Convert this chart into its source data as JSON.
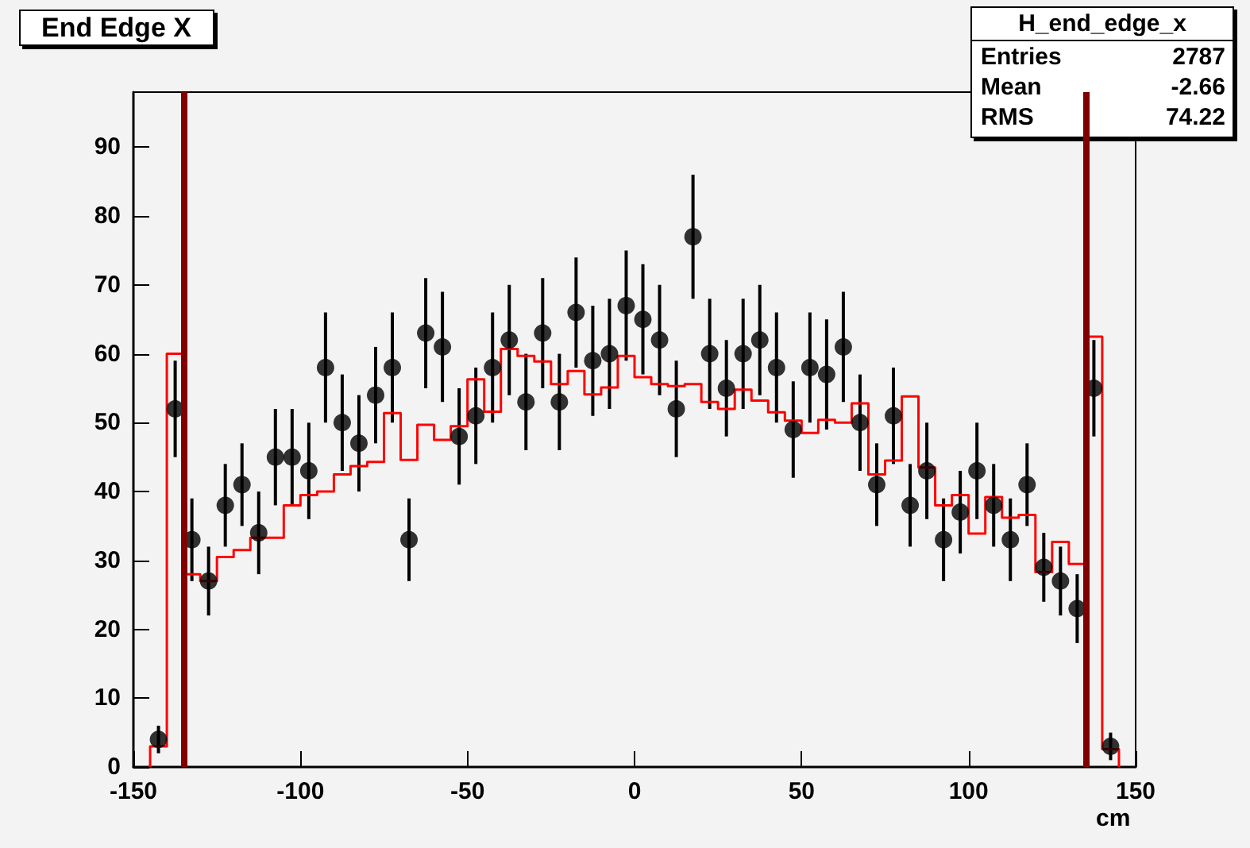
{
  "chart_data": {
    "type": "scatter",
    "title": "End Edge X",
    "xlabel": "cm",
    "annotations": [
      "H_end_edge_x",
      "Entries 2787",
      "Mean -2.66",
      "RMS 74.22"
    ],
    "x": [
      -142.5,
      -137.5,
      -132.5,
      -127.5,
      -122.5,
      -117.5,
      -112.5,
      -107.5,
      -102.5,
      -97.5,
      -92.5,
      -87.5,
      -82.5,
      -77.5,
      -72.5,
      -67.5,
      -62.5,
      -57.5,
      -52.5,
      -47.5,
      -42.5,
      -37.5,
      -32.5,
      -27.5,
      -22.5,
      -17.5,
      -12.5,
      -7.5,
      -2.5,
      2.5,
      7.5,
      12.5,
      17.5,
      22.5,
      27.5,
      32.5,
      37.5,
      42.5,
      47.5,
      52.5,
      57.5,
      62.5,
      67.5,
      72.5,
      77.5,
      82.5,
      87.5,
      92.5,
      97.5,
      102.5,
      107.5,
      112.5,
      117.5,
      122.5,
      127.5,
      132.5,
      137.5,
      142.5
    ],
    "series": [
      {
        "color": "#000000",
        "values": [
          4,
          52,
          33,
          27,
          38,
          41,
          34,
          45,
          45,
          43,
          58,
          50,
          47,
          54,
          58,
          33,
          63,
          61,
          48,
          51,
          58,
          62,
          53,
          63,
          53,
          66,
          59,
          60,
          67,
          65,
          62,
          52,
          77,
          60,
          55,
          60,
          62,
          58,
          49,
          58,
          57,
          61,
          50,
          41,
          51,
          38,
          43,
          33,
          37,
          43,
          38,
          33,
          41,
          29,
          27,
          23,
          55,
          3
        ],
        "errors": [
          2,
          7,
          6,
          5,
          6,
          6,
          6,
          7,
          7,
          7,
          8,
          7,
          7,
          7,
          8,
          6,
          8,
          8,
          7,
          7,
          8,
          8,
          7,
          8,
          7,
          8,
          8,
          8,
          8,
          8,
          8,
          7,
          9,
          8,
          7,
          8,
          8,
          8,
          7,
          8,
          8,
          8,
          7,
          6,
          7,
          6,
          7,
          6,
          6,
          7,
          6,
          6,
          6,
          5,
          5,
          5,
          7,
          2
        ]
      },
      {
        "type": "histogram",
        "color": "#ff0000",
        "bins": [
          -145,
          -140,
          -135,
          -130,
          -125,
          -120,
          -115,
          -110,
          -105,
          -100,
          -95,
          -90,
          -85,
          -80,
          -75,
          -70,
          -65,
          -60,
          -55,
          -50,
          -45,
          -40,
          -35,
          -30,
          -25,
          -20,
          -15,
          -10,
          -5,
          0,
          5,
          10,
          15,
          20,
          25,
          30,
          35,
          40,
          45,
          50,
          55,
          60,
          65,
          70,
          75,
          80,
          85,
          90,
          95,
          100,
          105,
          110,
          115,
          120,
          125,
          130,
          135,
          140,
          145
        ],
        "values": [
          3,
          60,
          28,
          27,
          30.5,
          31.5,
          33.3,
          33.3,
          38,
          39.5,
          40,
          42.5,
          43.7,
          44.3,
          51.4,
          44.6,
          49.7,
          47.5,
          49.5,
          56.3,
          51.6,
          60.7,
          59.7,
          58.9,
          55.6,
          57.5,
          54.1,
          55.1,
          59.7,
          56.6,
          55.6,
          55.3,
          55.6,
          53,
          52,
          54.8,
          53.2,
          51.5,
          50.3,
          48.5,
          50.4,
          50,
          52.8,
          42.5,
          44.5,
          53.8,
          43.5,
          38,
          39.5,
          33.9,
          39.2,
          36.2,
          36.6,
          28.3,
          32.7,
          29.5,
          62.5,
          2.6
        ]
      }
    ],
    "ref_lines": [
      {
        "axis": "x",
        "value": -135,
        "color": "#800000"
      },
      {
        "axis": "x",
        "value": 135,
        "color": "#800000"
      }
    ],
    "xlim": [
      -150,
      150
    ],
    "xticks": [
      -150,
      -100,
      -50,
      0,
      50,
      100,
      150
    ],
    "ylim": [
      0,
      98
    ],
    "yticks": [
      0,
      10,
      20,
      30,
      40,
      50,
      60,
      70,
      80,
      90
    ],
    "grid": false,
    "marker": "circle"
  }
}
